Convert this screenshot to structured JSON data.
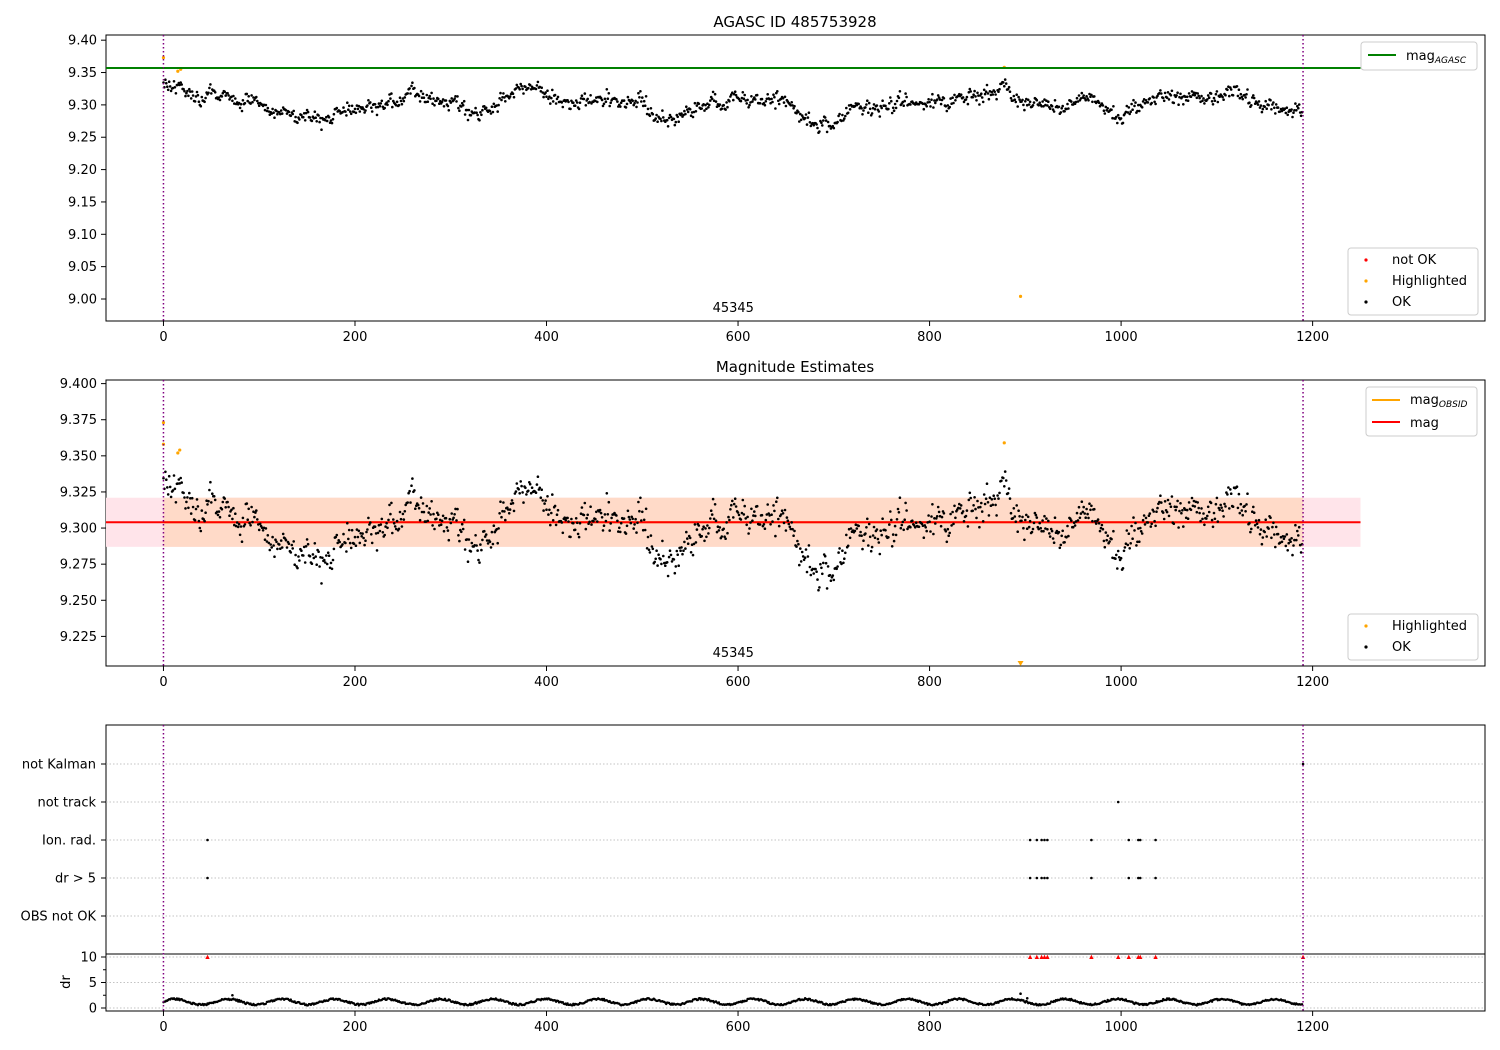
{
  "colors": {
    "ok": "#000000",
    "highlighted": "#ffa500",
    "not_ok": "#ff0000",
    "mag_agasc": "#008000",
    "mag_obsid": "#ffa500",
    "mag": "#ff0000",
    "band_inner": "#ffdac8",
    "band_outer": "#ffe4ea",
    "obs_boundary": "#800080",
    "grid": "#b0b0b0"
  },
  "chart_data": [
    {
      "type": "scatter",
      "title": "AGASC ID 485753928",
      "xlabel": "",
      "ylabel": "",
      "xlim": [
        -60,
        1380
      ],
      "ylim": [
        8.966,
        9.408
      ],
      "x_ticks": [
        "0",
        "200",
        "400",
        "600",
        "800",
        "1000",
        "1200"
      ],
      "y_ticks": [
        "9.00",
        "9.05",
        "9.10",
        "9.15",
        "9.20",
        "9.25",
        "9.30",
        "9.35",
        "9.40"
      ],
      "obsid_boundaries": [
        0,
        1190
      ],
      "obsid_label": "45345",
      "reference_line": {
        "name": "mag_AGASC",
        "value": 9.357,
        "x_range": [
          -60,
          1250
        ]
      },
      "series": [
        {
          "name": "not OK",
          "points": []
        },
        {
          "name": "Highlighted",
          "points": [
            [
              0,
              9.373
            ],
            [
              15,
              9.352
            ],
            [
              18,
              9.355
            ],
            [
              878,
              9.358
            ],
            [
              895,
              9.004
            ]
          ]
        },
        {
          "name": "OK",
          "trend": [
            [
              0,
              9.335
            ],
            [
              30,
              9.32
            ],
            [
              100,
              9.3
            ],
            [
              150,
              9.28
            ],
            [
              200,
              9.29
            ],
            [
              260,
              9.31
            ],
            [
              330,
              9.29
            ],
            [
              380,
              9.33
            ],
            [
              420,
              9.3
            ],
            [
              500,
              9.31
            ],
            [
              520,
              9.275
            ],
            [
              600,
              9.315
            ],
            [
              650,
              9.3
            ],
            [
              680,
              9.27
            ],
            [
              720,
              9.29
            ],
            [
              800,
              9.305
            ],
            [
              860,
              9.32
            ],
            [
              880,
              9.33
            ],
            [
              900,
              9.3
            ],
            [
              970,
              9.305
            ],
            [
              1000,
              9.28
            ],
            [
              1050,
              9.32
            ],
            [
              1080,
              9.31
            ],
            [
              1120,
              9.32
            ],
            [
              1150,
              9.3
            ],
            [
              1170,
              9.285
            ],
            [
              1190,
              9.29
            ]
          ],
          "count": 1190,
          "scatter": 0.014
        }
      ],
      "legend_lines": {
        "items": [
          "mag_AGASC"
        ],
        "placement": "upper right"
      },
      "legend_points": {
        "items": [
          "not OK",
          "Highlighted",
          "OK"
        ],
        "placement": "lower right"
      }
    },
    {
      "type": "scatter",
      "title": "Magnitude Estimates",
      "xlabel": "",
      "ylabel": "",
      "xlim": [
        -60,
        1380
      ],
      "ylim": [
        9.2045,
        9.4025
      ],
      "x_ticks": [
        "0",
        "200",
        "400",
        "600",
        "800",
        "1000",
        "1200"
      ],
      "y_ticks": [
        "9.225",
        "9.250",
        "9.275",
        "9.300",
        "9.325",
        "9.350",
        "9.375",
        "9.400"
      ],
      "obsid_boundaries": [
        0,
        1190
      ],
      "obsid_label": "45345",
      "mag": {
        "value": 9.304,
        "band_low": 9.287,
        "band_high": 9.321,
        "x_range": [
          -60,
          1250
        ]
      },
      "mag_obsid": {
        "value": 9.304,
        "band_low": 9.287,
        "band_high": 9.321,
        "x_range": [
          0,
          1190
        ]
      },
      "series": [
        {
          "name": "Highlighted",
          "points": [
            [
              0,
              9.373
            ],
            [
              0,
              9.358
            ],
            [
              15,
              9.352
            ],
            [
              17,
              9.354
            ],
            [
              878,
              9.359
            ],
            [
              895,
              9.206
            ]
          ]
        },
        {
          "name": "OK",
          "trend": [
            [
              0,
              9.335
            ],
            [
              30,
              9.32
            ],
            [
              100,
              9.3
            ],
            [
              150,
              9.28
            ],
            [
              200,
              9.29
            ],
            [
              260,
              9.31
            ],
            [
              330,
              9.29
            ],
            [
              380,
              9.33
            ],
            [
              420,
              9.3
            ],
            [
              500,
              9.31
            ],
            [
              520,
              9.275
            ],
            [
              600,
              9.315
            ],
            [
              650,
              9.3
            ],
            [
              680,
              9.27
            ],
            [
              720,
              9.29
            ],
            [
              800,
              9.305
            ],
            [
              860,
              9.32
            ],
            [
              880,
              9.33
            ],
            [
              900,
              9.3
            ],
            [
              970,
              9.305
            ],
            [
              1000,
              9.28
            ],
            [
              1050,
              9.32
            ],
            [
              1080,
              9.31
            ],
            [
              1120,
              9.32
            ],
            [
              1150,
              9.3
            ],
            [
              1170,
              9.285
            ],
            [
              1190,
              9.29
            ]
          ],
          "count": 1190,
          "scatter": 0.014
        }
      ],
      "legend_lines": {
        "items": [
          "mag_OBSID",
          "mag"
        ],
        "placement": "upper right"
      },
      "legend_points": {
        "items": [
          "Highlighted",
          "OK"
        ],
        "placement": "lower right"
      }
    },
    {
      "type": "scatter",
      "title": "",
      "xlim": [
        -60,
        1380
      ],
      "x_ticks": [
        "0",
        "200",
        "400",
        "600",
        "800",
        "1000",
        "1200"
      ],
      "obsid_boundaries": [
        0,
        1190
      ],
      "flag_rows": [
        "not Kalman",
        "not track",
        "Ion. rad.",
        "dr > 5",
        "OBS not OK"
      ],
      "flags": {
        "not Kalman": [
          1190
        ],
        "not track": [
          997
        ],
        "Ion. rad.": [
          46,
          905,
          912,
          917,
          920,
          923,
          969,
          1008,
          1018,
          1020,
          1036
        ],
        "dr > 5": [
          46,
          905,
          912,
          917,
          920,
          923,
          969,
          1008,
          1018,
          1020,
          1036
        ],
        "OBS not OK": []
      },
      "dr": {
        "ylabel": "dr",
        "y_ticks": [
          "0",
          "5",
          "10"
        ],
        "ylim": [
          -0.5,
          10.5
        ],
        "clip_value": 10,
        "clipped_x": [
          46,
          905,
          912,
          917,
          920,
          923,
          969,
          997,
          1008,
          1018,
          1020,
          1036,
          1190
        ],
        "spikes": [
          [
            72,
            2.5
          ],
          [
            560,
            1.9
          ],
          [
            895,
            2.8
          ],
          [
            902,
            1.9
          ]
        ],
        "typical": 1.2
      }
    }
  ],
  "legend_labels": {
    "mag_agasc": {
      "base": "mag",
      "sub": "AGASC"
    },
    "mag_obsid": {
      "base": "mag",
      "sub": "OBSID"
    },
    "mag": "mag",
    "not_ok": "not OK",
    "highlighted": "Highlighted",
    "ok": "OK"
  }
}
